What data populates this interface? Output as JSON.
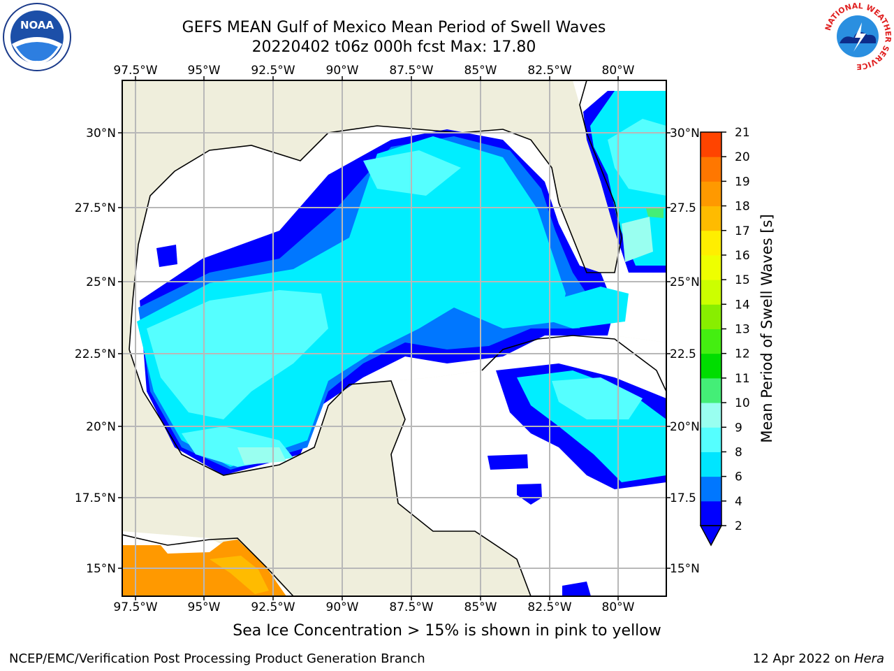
{
  "title_line1": "GEFS MEAN Gulf of Mexico Mean Period of Swell Waves",
  "title_line2": "20220402 t06z 000h fcst   Max: 17.80",
  "lon_labels": [
    "97.5°W",
    "95°W",
    "92.5°W",
    "90°W",
    "87.5°W",
    "85°W",
    "82.5°W",
    "80°W"
  ],
  "lat_labels_left": [
    "30°N",
    "27.5°N",
    "25°N",
    "22.5°N",
    "20°N",
    "17.5°N",
    "15°N"
  ],
  "lat_labels_right": [
    "30°N",
    "27.5",
    "25°N",
    "22.5",
    "20°N",
    "17.5",
    "15°N"
  ],
  "colorbar": {
    "label": "Mean Period of Swell Waves [s]",
    "ticks": [
      "2",
      "4",
      "6",
      "8",
      "9",
      "10",
      "11",
      "12",
      "13",
      "14",
      "15",
      "16",
      "17",
      "18",
      "19",
      "20",
      "21"
    ],
    "colors": [
      "#0000ff",
      "#0077ff",
      "#00e5ff",
      "#55ffff",
      "#99fff0",
      "#44ee77",
      "#00dd00",
      "#44ee11",
      "#88ee00",
      "#ccff00",
      "#eeff00",
      "#ffee00",
      "#ffbb00",
      "#ff9900",
      "#ff7700",
      "#ff4400",
      "#ff0000"
    ]
  },
  "sea_ice_note": "Sea Ice Concentration > 15% is shown in pink to yellow",
  "footer_left": "NCEP/EMC/Verification Post Processing Product Generation Branch",
  "footer_right_date": "12 Apr 2022 on ",
  "footer_right_host": "Hera",
  "logos": {
    "left": "NOAA",
    "right_ring": "NATIONAL WEATHER SERVICE"
  },
  "colors": {
    "land": "#efeedc",
    "ocean_white": "#ffffff",
    "grid": "#b8b8b8"
  }
}
